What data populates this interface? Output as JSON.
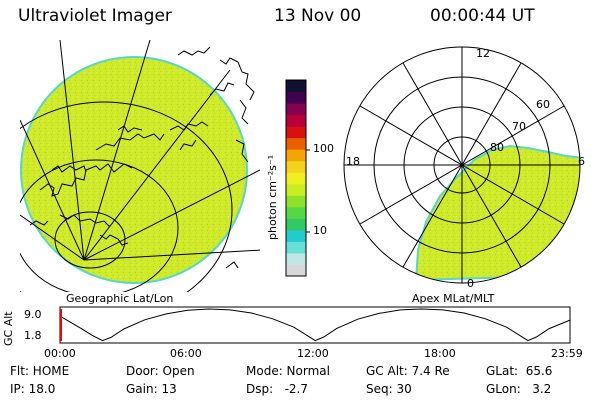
{
  "header": {
    "instrument": "Ultraviolet Imager",
    "date": "13 Nov 00",
    "time": "00:00:44 UT"
  },
  "geo_panel": {
    "caption": "Geographic Lat/Lon"
  },
  "colorbar": {
    "unit_label": "photon cm⁻²s⁻¹",
    "tick_100": "100",
    "tick_10": "10",
    "colors": [
      "#d8d8d8",
      "#c0e6e6",
      "#66e0d8",
      "#22cccc",
      "#33c866",
      "#55d844",
      "#8ee22a",
      "#c8ee22",
      "#eef022",
      "#f4d41a",
      "#f6a400",
      "#e86000",
      "#d81010",
      "#b8003a",
      "#880050",
      "#400050",
      "#101030"
    ]
  },
  "polar_panel": {
    "caption": "Apex MLat/MLT",
    "mlt_labels": {
      "top": "12",
      "left": "18",
      "right": "6",
      "bottom": "0"
    },
    "mlat_labels": [
      "60",
      "70",
      "80"
    ]
  },
  "altitude_plot": {
    "axis_title": "GC Alt",
    "y_max": "9.0",
    "y_min": "1.8",
    "x_ticks": [
      "00:00",
      "06:00",
      "12:00",
      "18:00",
      "23:59"
    ],
    "orbit_curve": [
      {
        "t": 0.0,
        "alt": 7.4
      },
      {
        "t": 0.5,
        "alt": 6.0
      },
      {
        "t": 1.0,
        "alt": 4.6
      },
      {
        "t": 1.5,
        "alt": 3.1
      },
      {
        "t": 2.0,
        "alt": 1.9
      },
      {
        "t": 2.4,
        "alt": 2.6
      },
      {
        "t": 3.0,
        "alt": 4.5
      },
      {
        "t": 4.0,
        "alt": 6.6
      },
      {
        "t": 5.0,
        "alt": 7.9
      },
      {
        "t": 6.0,
        "alt": 8.7
      },
      {
        "t": 7.0,
        "alt": 9.0
      },
      {
        "t": 8.0,
        "alt": 8.8
      },
      {
        "t": 9.0,
        "alt": 8.1
      },
      {
        "t": 10.0,
        "alt": 6.8
      },
      {
        "t": 11.0,
        "alt": 4.9
      },
      {
        "t": 11.7,
        "alt": 2.8
      },
      {
        "t": 12.0,
        "alt": 1.9
      },
      {
        "t": 12.4,
        "alt": 2.7
      },
      {
        "t": 13.0,
        "alt": 4.6
      },
      {
        "t": 14.0,
        "alt": 6.7
      },
      {
        "t": 15.0,
        "alt": 8.0
      },
      {
        "t": 16.0,
        "alt": 8.8
      },
      {
        "t": 17.0,
        "alt": 9.0
      },
      {
        "t": 18.0,
        "alt": 8.8
      },
      {
        "t": 19.0,
        "alt": 8.1
      },
      {
        "t": 20.0,
        "alt": 6.8
      },
      {
        "t": 21.0,
        "alt": 4.9
      },
      {
        "t": 21.7,
        "alt": 2.8
      },
      {
        "t": 22.0,
        "alt": 1.9
      },
      {
        "t": 22.4,
        "alt": 2.7
      },
      {
        "t": 23.0,
        "alt": 4.6
      },
      {
        "t": 23.98,
        "alt": 6.5
      }
    ]
  },
  "status": {
    "filter": "Flt: HOME",
    "door": "Door: Open",
    "mode": "Mode: Normal",
    "gc_alt": "GC Alt: 7.4 Re",
    "glat": "GLat:  65.6",
    "ip": "IP: 18.0",
    "gain": "Gain: 13",
    "dsp": "Dsp:   -2.7",
    "seq": "Seq: 30",
    "glon": "GLon:   3.2"
  }
}
